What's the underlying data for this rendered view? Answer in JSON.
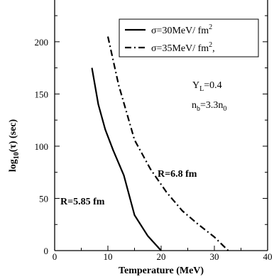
{
  "chart_data": {
    "type": "line",
    "xlabel": "Temperature (MeV)",
    "ylabel_main": "log",
    "ylabel_sub": "10",
    "ylabel_rest": "(τ) (sec)",
    "xlim": [
      0,
      40
    ],
    "ylim": [
      0,
      240
    ],
    "x_ticks": [
      0,
      10,
      20,
      30,
      40
    ],
    "y_ticks": [
      0,
      50,
      100,
      150,
      200
    ],
    "grid": false,
    "legend_position": "top-right",
    "series": [
      {
        "name": "σ=30MeV/ fm",
        "name_sup": "2",
        "style": "solid",
        "x": [
          7,
          8.2,
          9.5,
          11,
          13,
          15,
          17.5,
          20
        ],
        "y": [
          175,
          140,
          116,
          96,
          72,
          34,
          14,
          0
        ]
      },
      {
        "name": "σ=35MeV/ fm",
        "name_sup": "2",
        "name_suffix": ",",
        "style": "dashdot",
        "x": [
          10,
          12,
          15,
          18,
          21,
          24,
          27,
          30,
          32.6
        ],
        "y": [
          205,
          159,
          106,
          78,
          56,
          38,
          25,
          13,
          0
        ]
      }
    ],
    "annotations": {
      "yl_main": "Y",
      "yl_sub": "L",
      "yl_rest": "=0.4",
      "nb_main": "n",
      "nb_sub": "b",
      "nb_rest": "=3.3n",
      "nb_sub2": "0",
      "r1": "R=5.85 fm",
      "r2": "R=6.8 fm"
    },
    "colors": {
      "line": "#000000",
      "axis": "#000000"
    }
  }
}
